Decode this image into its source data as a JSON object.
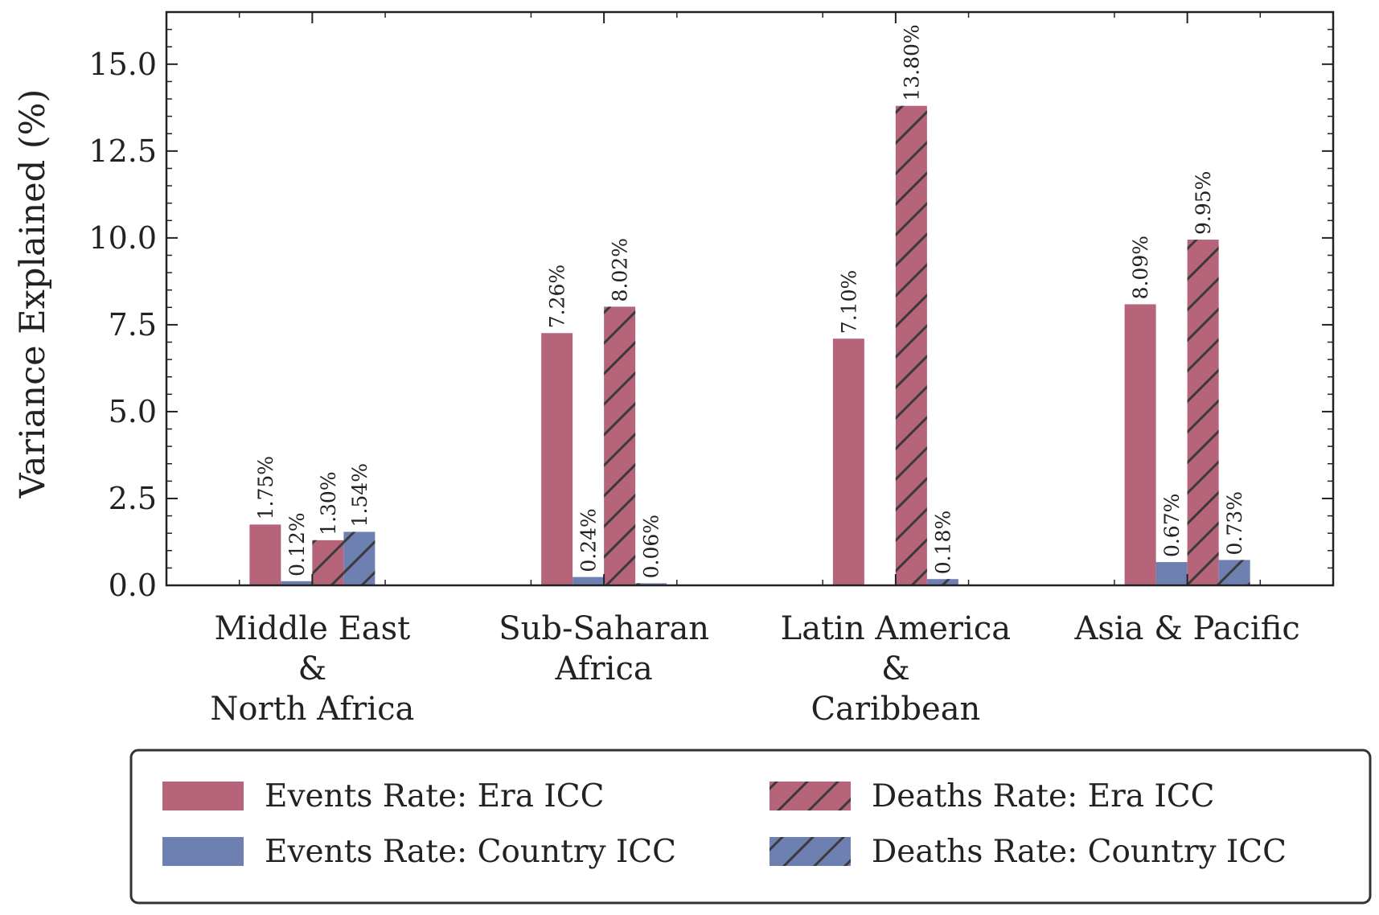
{
  "chart_data": {
    "type": "bar",
    "title": "",
    "xlabel": "",
    "ylabel": "Variance Explained (%)",
    "ylim": [
      0,
      16.5
    ],
    "yticks": [
      "0.0",
      "2.5",
      "5.0",
      "7.5",
      "10.0",
      "12.5",
      "15.0"
    ],
    "grid": false,
    "legend_position": "bottom",
    "categories": [
      [
        "Middle East",
        "&",
        "North Africa"
      ],
      [
        "Sub-Saharan",
        "Africa"
      ],
      [
        "Latin America",
        "&",
        "Caribbean"
      ],
      [
        "Asia & Pacific"
      ]
    ],
    "series": [
      {
        "name": "Events Rate: Era ICC",
        "color": "#b5647a",
        "hatch": false,
        "values": [
          1.75,
          7.26,
          7.1,
          8.09
        ],
        "labels": [
          "1.75%",
          "7.26%",
          "7.10%",
          "8.09%"
        ]
      },
      {
        "name": "Events Rate: Country ICC",
        "color": "#6e80b1",
        "hatch": false,
        "values": [
          0.12,
          0.24,
          null,
          0.67
        ],
        "labels": [
          "0.12%",
          "0.24%",
          "",
          "0.67%"
        ]
      },
      {
        "name": "Deaths Rate: Era ICC",
        "color": "#b5647a",
        "hatch": true,
        "values": [
          1.3,
          8.02,
          13.8,
          9.95
        ],
        "labels": [
          "1.30%",
          "8.02%",
          "13.80%",
          "9.95%"
        ]
      },
      {
        "name": "Deaths Rate: Country ICC",
        "color": "#6e80b1",
        "hatch": true,
        "values": [
          1.54,
          0.06,
          0.18,
          0.73
        ],
        "labels": [
          "1.54%",
          "0.06%",
          "0.18%",
          "0.73%"
        ]
      }
    ]
  }
}
